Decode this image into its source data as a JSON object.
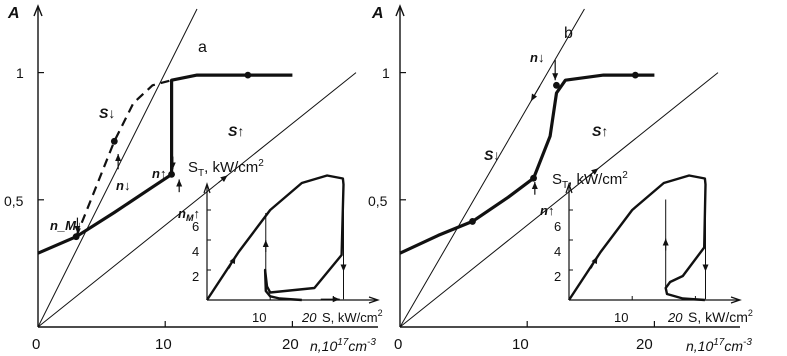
{
  "chart_data": [
    {
      "type": "line",
      "panel_label": "a",
      "ylabel": "A",
      "xlabel": "n,10",
      "xlabel_exp": "17",
      "xlabel_unit": "cm",
      "xlabel_unit_exp": "-3",
      "x_ticks": [
        "0",
        "10",
        "20"
      ],
      "y_ticks": [
        "0,5",
        "1"
      ],
      "xlim": [
        0,
        25
      ],
      "ylim": [
        0,
        1.25
      ],
      "lines": [
        {
          "label": "S↓",
          "x": [
            0,
            12.5
          ],
          "y": [
            0,
            1.25
          ]
        },
        {
          "label": "S↑",
          "x": [
            0,
            25
          ],
          "y": [
            0,
            1.0
          ]
        }
      ],
      "series": [
        {
          "style": "solid",
          "x": [
            0,
            3,
            6,
            9,
            10.5
          ],
          "y": [
            0.29,
            0.355,
            0.45,
            0.55,
            0.6
          ]
        },
        {
          "style": "solid",
          "x": [
            10.5,
            10.5,
            12.5,
            16.5,
            20
          ],
          "y": [
            0.6,
            0.97,
            0.99,
            0.99,
            0.99
          ]
        },
        {
          "style": "dashed",
          "x": [
            3,
            6,
            7.5,
            9,
            10.5
          ],
          "y": [
            0.355,
            0.73,
            0.88,
            0.95,
            0.97
          ]
        }
      ],
      "points": [
        {
          "label": "n_M↓",
          "x": 3,
          "y": 0.355
        },
        {
          "label": "n↓",
          "x": 6,
          "y": 0.73
        },
        {
          "label": "n↑",
          "x": 10.5,
          "y": 0.6
        },
        {
          "label": "",
          "x": 16.5,
          "y": 0.99
        }
      ],
      "inset": {
        "type": "line",
        "ylabel": "S",
        "ylabel_sub": "T",
        "ylabel_unit": ", kW/cm",
        "ylabel_unit_exp": "2",
        "xlabel": "S, kW/cm",
        "xlabel_exp": "2",
        "x_ticks": [
          "10",
          "20"
        ],
        "y_ticks": [
          "2",
          "4",
          "6"
        ],
        "xlim": [
          0,
          25
        ],
        "ylim": [
          0,
          8
        ],
        "series": [
          {
            "style": "solid",
            "x": [
              0,
              5,
              10,
              15,
              19,
              21.5,
              21.6,
              21.3,
              17,
              10,
              9.5,
              9.2,
              9.3,
              10,
              11.5,
              15
            ],
            "y": [
              0,
              3.2,
              6,
              7.8,
              8.3,
              8.1,
              7.7,
              3,
              0.8,
              0.5,
              0.9,
              2,
              0.6,
              0.25,
              0.1,
              0
            ]
          }
        ],
        "arrows": [
          "up",
          "down",
          "right"
        ]
      }
    },
    {
      "type": "line",
      "panel_label": "b",
      "ylabel": "A",
      "xlabel": "n,10",
      "xlabel_exp": "17",
      "xlabel_unit": "cm",
      "xlabel_unit_exp": "-3",
      "x_ticks": [
        "0",
        "10",
        "20"
      ],
      "y_ticks": [
        "0,5",
        "1"
      ],
      "xlim": [
        0,
        25
      ],
      "ylim": [
        0,
        1.25
      ],
      "lines": [
        {
          "label": "S↓",
          "x": [
            0,
            14.5
          ],
          "y": [
            0,
            1.25
          ]
        },
        {
          "label": "S↑",
          "x": [
            0,
            25
          ],
          "y": [
            0,
            1.0
          ]
        }
      ],
      "series": [
        {
          "style": "solid",
          "x": [
            0,
            3,
            5.7,
            8.5,
            10.5,
            11.8,
            12.3,
            13,
            16,
            20
          ],
          "y": [
            0.29,
            0.36,
            0.415,
            0.51,
            0.585,
            0.75,
            0.92,
            0.97,
            0.99,
            0.99
          ]
        }
      ],
      "points": [
        {
          "label": "",
          "x": 5.7,
          "y": 0.415
        },
        {
          "label": "n↑",
          "x": 10.5,
          "y": 0.585
        },
        {
          "label": "n↓",
          "x": 12.3,
          "y": 0.95
        },
        {
          "label": "",
          "x": 18.5,
          "y": 0.99
        }
      ],
      "inset": {
        "type": "line",
        "ylabel": "S",
        "ylabel_sub": "T",
        "ylabel_unit": ", kW/cm",
        "ylabel_unit_exp": "2",
        "xlabel": "S, kW/cm",
        "xlabel_exp": "2",
        "x_ticks": [
          "10",
          "20"
        ],
        "y_ticks": [
          "2",
          "4",
          "6"
        ],
        "xlim": [
          0,
          25
        ],
        "ylim": [
          0,
          8
        ],
        "series": [
          {
            "style": "solid",
            "x": [
              0,
              5,
              10,
              15,
              19,
              21.5,
              21.6,
              21.4,
              18,
              16,
              15.3,
              15.5,
              18,
              21.5
            ],
            "y": [
              0,
              3.2,
              6,
              7.8,
              8.3,
              8.1,
              7.7,
              3.5,
              1.6,
              1.2,
              0.8,
              0.4,
              0.1,
              0
            ]
          }
        ],
        "arrows": [
          "up",
          "down"
        ]
      }
    }
  ]
}
